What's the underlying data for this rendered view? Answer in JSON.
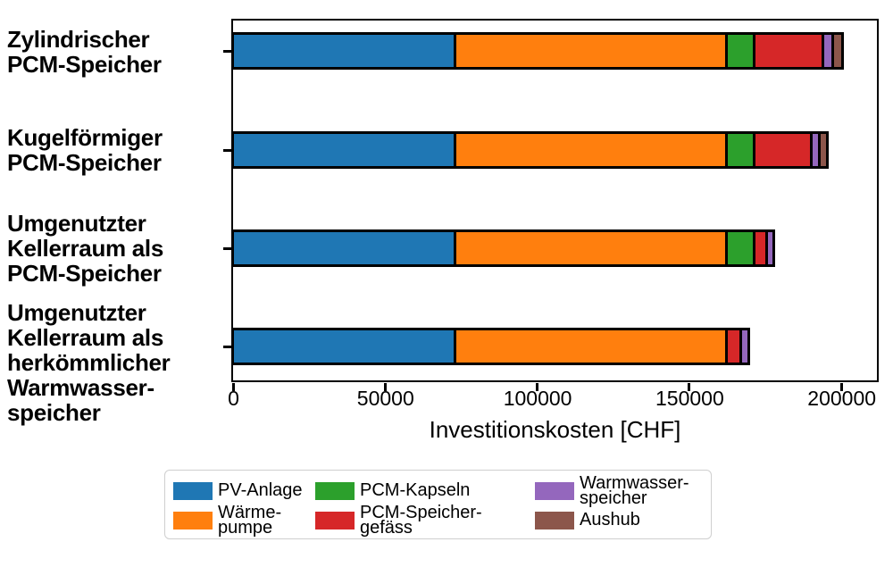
{
  "chart_data": {
    "type": "bar",
    "orientation": "horizontal",
    "title": "",
    "xlabel": "Investitionskosten [CHF]",
    "ylabel": "",
    "grid": false,
    "legend_position": "bottom",
    "xlim": [
      0,
      211400
    ],
    "x_ticks": [
      0,
      50000,
      100000,
      150000,
      200000
    ],
    "x_tick_labels": [
      "0",
      "50000",
      "100000",
      "150000",
      "200000"
    ],
    "categories": [
      [
        "Zylindrischer",
        "PCM-Speicher"
      ],
      [
        "Kugelförmiger",
        "PCM-Speicher"
      ],
      [
        "Umgenutzter",
        "Kellerraum als",
        "PCM-Speicher"
      ],
      [
        "Umgenutzter",
        "Kellerraum als",
        "herkömmlicher",
        "Warmwasser-",
        "speicher"
      ]
    ],
    "series": [
      {
        "name": "PV-Anlage",
        "legend_lines": [
          "PV-Anlage"
        ],
        "color": "#1f77b4",
        "values": [
          74000,
          74000,
          74000,
          74000
        ]
      },
      {
        "name": "Wärmepumpe",
        "legend_lines": [
          "Wärme-",
          "pumpe"
        ],
        "color": "#ff7f0e",
        "values": [
          89500,
          89500,
          89500,
          89500
        ]
      },
      {
        "name": "PCM-Kapseln",
        "legend_lines": [
          "PCM-Kapseln"
        ],
        "color": "#2ca02c",
        "values": [
          9000,
          9000,
          9000,
          0
        ]
      },
      {
        "name": "PCM-Speichergefäss",
        "legend_lines": [
          "PCM-Speicher-",
          "gefäss"
        ],
        "color": "#d62728",
        "values": [
          22700,
          18700,
          4000,
          4500
        ]
      },
      {
        "name": "Warmwasserspeicher",
        "legend_lines": [
          "Warmwasser-",
          "speicher"
        ],
        "color": "#9467bd",
        "values": [
          3200,
          2700,
          2500,
          2800
        ]
      },
      {
        "name": "Aushub",
        "legend_lines": [
          "Aushub"
        ],
        "color": "#8c564b",
        "values": [
          3100,
          2800,
          0,
          0
        ]
      }
    ],
    "bar_edge_color": "#000000",
    "frame_color": "#000000"
  }
}
